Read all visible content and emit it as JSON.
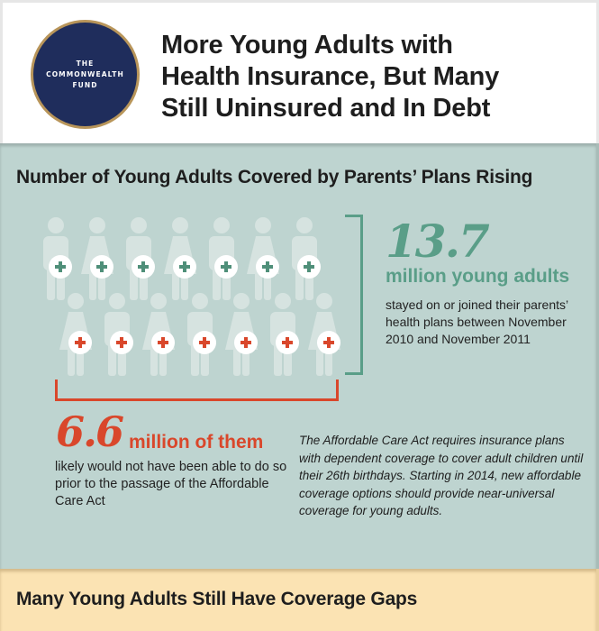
{
  "header": {
    "logo": {
      "lines": [
        "THE",
        "COMMONWEALTH",
        "FUND"
      ],
      "bg_color": "#1f2d5c",
      "ring_color": "#b8955a"
    },
    "title_lines": [
      "More Young Adults with",
      "Health Insurance, But Many",
      "Still Uninsured and In Debt"
    ]
  },
  "section1": {
    "title": "Number of Young Adults Covered by Parents’ Plans Rising",
    "bg_color": "#bed4d0",
    "people_rows": [
      {
        "badge": "plus-green",
        "badge_color": "#4f8f79",
        "figures": [
          "man",
          "woman",
          "man",
          "woman",
          "man",
          "woman",
          "man"
        ]
      },
      {
        "badge": "plus-red",
        "badge_color": "#d9472b",
        "figures": [
          "woman",
          "man",
          "woman",
          "man",
          "woman",
          "man",
          "woman"
        ]
      }
    ],
    "stat_total": {
      "value": "13.7",
      "unit": "million young adults",
      "description": "stayed on or joined their parents’ health plans between November 2010 and November 2011",
      "color": "#5a9e88"
    },
    "stat_aca": {
      "value": "6.6",
      "unit": "million of them",
      "description": "likely would not have been able to do so prior to the passage of the Affordable Care Act",
      "color": "#d9472b"
    },
    "note": "The Affordable Care Act requires insurance plans with dependent coverage to cover adult children until their 26th birthdays. Starting in 2014, new affordable coverage options should provide near-universal coverage for young adults."
  },
  "section2": {
    "title": "Many Young Adults Still Have Coverage Gaps",
    "bg_color": "#fbe3b3"
  }
}
